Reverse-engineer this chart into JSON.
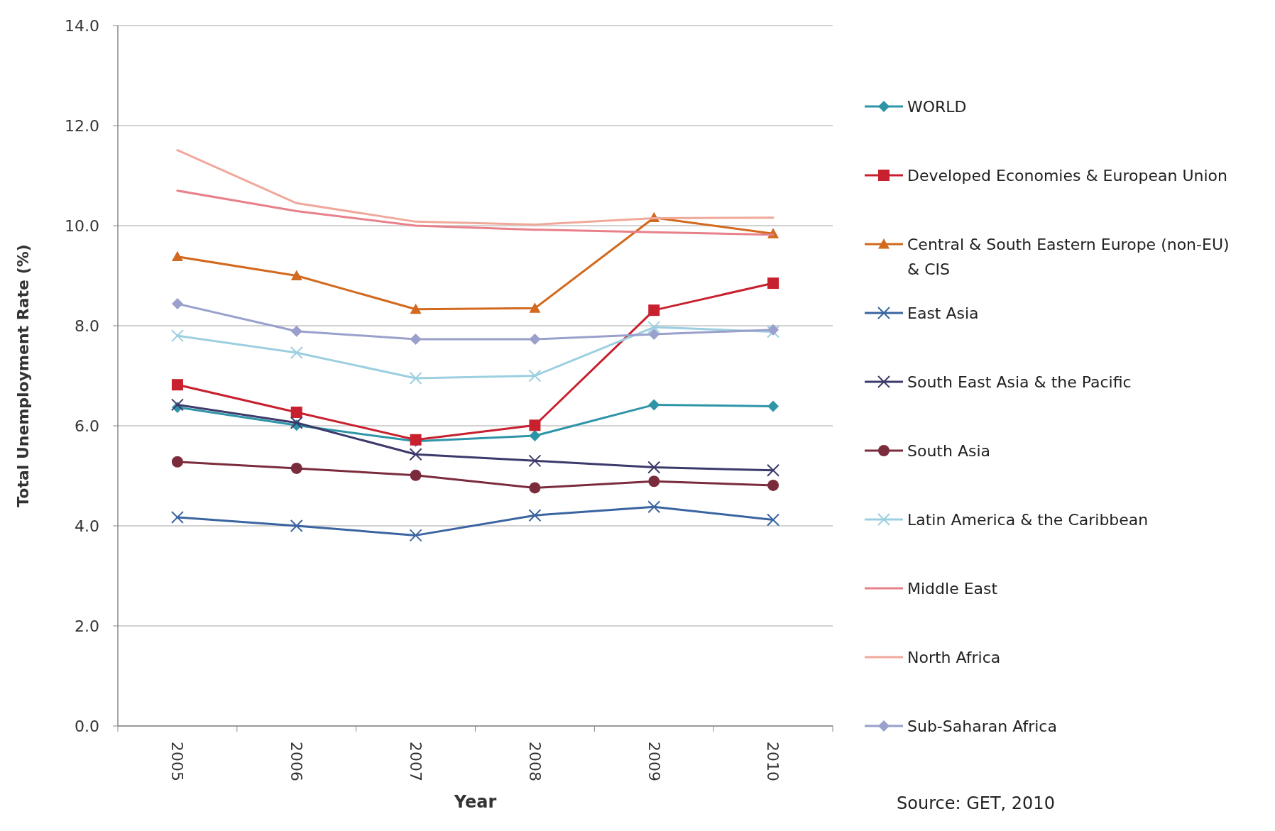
{
  "chart_data": {
    "type": "line",
    "xlabel": "Year",
    "ylabel": "Total Unemployment Rate (%)",
    "categories": [
      "2005",
      "2006",
      "2007",
      "2008",
      "2009",
      "2010"
    ],
    "ylim": [
      0,
      14
    ],
    "yticks": [
      {
        "value": 0,
        "label": "0.0"
      },
      {
        "value": 2,
        "label": "2.0"
      },
      {
        "value": 4,
        "label": "4.0"
      },
      {
        "value": 6,
        "label": "6.0"
      },
      {
        "value": 8,
        "label": "8.0"
      },
      {
        "value": 10,
        "label": "10.0"
      },
      {
        "value": 12,
        "label": "12.0"
      },
      {
        "value": 14,
        "label": "14.0"
      }
    ],
    "grid": "y",
    "legend": "right",
    "line_style": "solid",
    "annotations": [
      "Source: GET, 2010"
    ],
    "series": [
      {
        "name": "WORLD",
        "color": "#2e95a8",
        "marker": "diamond",
        "values": [
          6.37,
          6.01,
          5.69,
          5.8,
          6.42,
          6.39
        ]
      },
      {
        "name": "Developed Economies & European Union",
        "color": "#c8202e",
        "marker": "square",
        "values": [
          6.82,
          6.27,
          5.72,
          6.01,
          8.31,
          8.85
        ]
      },
      {
        "name": "Central & South Eastern Europe (non-EU) & CIS",
        "color": "#d2691e",
        "marker": "triangle",
        "values": [
          9.38,
          9.0,
          8.33,
          8.35,
          10.16,
          9.84
        ]
      },
      {
        "name": "East Asia",
        "color": "#3a64a0",
        "marker": "cross",
        "values": [
          4.17,
          4.0,
          3.81,
          4.21,
          4.38,
          4.12
        ]
      },
      {
        "name": "South East Asia & the Pacific",
        "color": "#3b3a6b",
        "marker": "cross",
        "values": [
          6.42,
          6.06,
          5.43,
          5.3,
          5.17,
          5.11
        ]
      },
      {
        "name": "South Asia",
        "color": "#7b2c3c",
        "marker": "circle",
        "values": [
          5.28,
          5.15,
          5.01,
          4.76,
          4.89,
          4.81
        ]
      },
      {
        "name": "Latin America & the Caribbean",
        "color": "#9ccfe0",
        "marker": "cross",
        "values": [
          7.8,
          7.46,
          6.95,
          7.0,
          7.97,
          7.88
        ]
      },
      {
        "name": "Middle East",
        "color": "#e8808a",
        "marker": "none",
        "values": [
          10.7,
          10.29,
          10.0,
          9.92,
          9.87,
          9.82
        ]
      },
      {
        "name": "North Africa",
        "color": "#f0a89a",
        "marker": "none",
        "values": [
          11.51,
          10.45,
          10.08,
          10.02,
          10.15,
          10.16
        ]
      },
      {
        "name": "Sub-Saharan Africa",
        "color": "#9aa0cc",
        "marker": "diamond",
        "values": [
          8.44,
          7.89,
          7.73,
          7.73,
          7.83,
          7.92
        ]
      }
    ]
  }
}
